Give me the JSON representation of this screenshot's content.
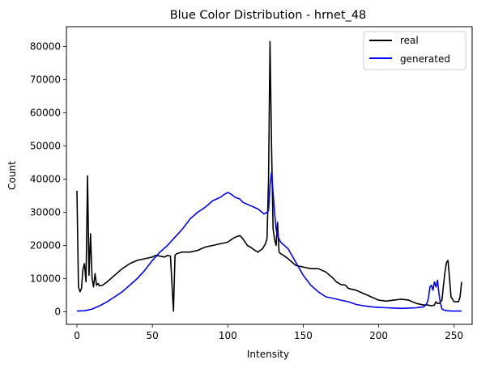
{
  "chart_data": {
    "type": "line",
    "title": "Blue Color Distribution - hrnet_48",
    "xlabel": "Intensity",
    "ylabel": "Count",
    "xlim": [
      -7,
      262
    ],
    "ylim": [
      -3800,
      86000
    ],
    "xticks": [
      0,
      50,
      100,
      150,
      200,
      250
    ],
    "yticks": [
      0,
      10000,
      20000,
      30000,
      40000,
      50000,
      60000,
      70000,
      80000
    ],
    "grid": false,
    "legend_position": "top-right",
    "series": [
      {
        "name": "real",
        "color": "#000000",
        "x": [
          0,
          1,
          2,
          3,
          4,
          5,
          6,
          7,
          8,
          9,
          10,
          11,
          12,
          13,
          14,
          15,
          17,
          20,
          25,
          30,
          35,
          40,
          45,
          50,
          52,
          55,
          58,
          60,
          62,
          63,
          64,
          65,
          66,
          68,
          70,
          75,
          80,
          85,
          90,
          95,
          100,
          103,
          105,
          108,
          110,
          113,
          115,
          118,
          120,
          123,
          125,
          126,
          127,
          128,
          129,
          130,
          131,
          132,
          133,
          134,
          135,
          137,
          140,
          145,
          150,
          155,
          160,
          165,
          170,
          172,
          175,
          178,
          180,
          185,
          190,
          195,
          200,
          205,
          210,
          215,
          220,
          225,
          230,
          233,
          235,
          237,
          238,
          239,
          240,
          242,
          243,
          244,
          245,
          246,
          247,
          248,
          250,
          253,
          254,
          255
        ],
        "y": [
          36500,
          7500,
          6000,
          7000,
          13000,
          14500,
          9000,
          41000,
          11000,
          23500,
          10000,
          7500,
          11500,
          8000,
          8500,
          7800,
          8000,
          9000,
          11000,
          13000,
          14500,
          15500,
          16000,
          16500,
          17000,
          16800,
          16500,
          17000,
          16800,
          8000,
          200,
          17000,
          17500,
          17800,
          18000,
          18000,
          18500,
          19500,
          20000,
          20500,
          21000,
          22000,
          22500,
          23000,
          22000,
          20000,
          19500,
          18500,
          18000,
          19000,
          20500,
          22000,
          40000,
          81500,
          50000,
          25000,
          22000,
          20000,
          27000,
          18000,
          17500,
          17000,
          16000,
          14000,
          13500,
          13000,
          13000,
          12000,
          10000,
          9000,
          8200,
          8000,
          7000,
          6500,
          5500,
          4500,
          3500,
          3200,
          3500,
          3800,
          3500,
          2500,
          2000,
          2000,
          1800,
          2000,
          3000,
          2500,
          2500,
          3500,
          8000,
          12000,
          14800,
          15500,
          10000,
          4500,
          3000,
          3000,
          4500,
          9000
        ]
      },
      {
        "name": "generated",
        "color": "#0000ff",
        "x": [
          0,
          5,
          10,
          15,
          20,
          25,
          30,
          35,
          40,
          45,
          50,
          55,
          60,
          65,
          70,
          75,
          80,
          85,
          90,
          95,
          98,
          100,
          102,
          105,
          108,
          110,
          115,
          120,
          124,
          126,
          127,
          128,
          129,
          130,
          131,
          132,
          133,
          135,
          140,
          145,
          150,
          155,
          160,
          165,
          170,
          175,
          180,
          185,
          190,
          195,
          200,
          205,
          210,
          215,
          220,
          225,
          230,
          232,
          233,
          234,
          235,
          236,
          237,
          238,
          239,
          240,
          241,
          242,
          244,
          246,
          248,
          250,
          255
        ],
        "y": [
          200,
          300,
          800,
          1800,
          3000,
          4500,
          6000,
          8000,
          10000,
          12500,
          15500,
          18000,
          20000,
          22500,
          25000,
          28000,
          30000,
          31500,
          33500,
          34500,
          35500,
          36000,
          35500,
          34500,
          34000,
          33000,
          32000,
          31000,
          29500,
          30000,
          30500,
          38000,
          42000,
          36000,
          30000,
          25000,
          23000,
          21000,
          19000,
          15000,
          11000,
          8000,
          6000,
          4500,
          4000,
          3500,
          3000,
          2200,
          1800,
          1500,
          1300,
          1200,
          1100,
          1000,
          1100,
          1200,
          1500,
          2500,
          4000,
          7500,
          8000,
          6500,
          9000,
          7500,
          9500,
          5500,
          2500,
          800,
          400,
          300,
          200,
          200,
          200
        ]
      }
    ]
  }
}
